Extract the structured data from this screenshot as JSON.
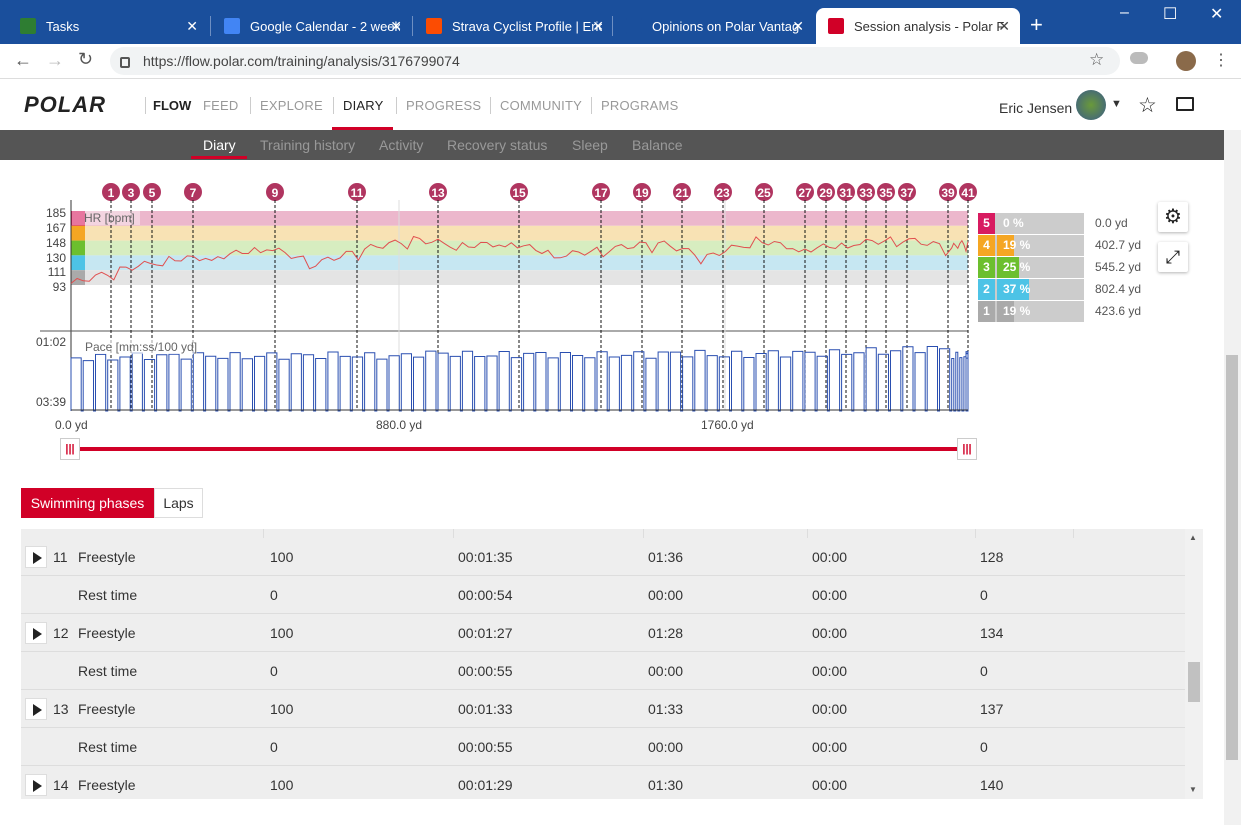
{
  "browser": {
    "tabs": [
      {
        "title": "Tasks",
        "fav": "#2e7d32"
      },
      {
        "title": "Google Calendar - 2 week",
        "fav": "#4285f4"
      },
      {
        "title": "Strava Cyclist Profile | Eric",
        "fav": "#fc4c02"
      },
      {
        "title": "Opinions on Polar Vantag",
        "fav": "#1a4f9c"
      },
      {
        "title": "Session analysis - Polar Flo",
        "fav": "#d10027"
      }
    ],
    "new_tab": "+",
    "url": "https://flow.polar.com/training/analysis/3176799074",
    "window_controls": [
      "–",
      "☐",
      "✕"
    ]
  },
  "nav": {
    "logo": "POLAR",
    "product": "FLOW",
    "items": [
      "FEED",
      "EXPLORE",
      "DIARY",
      "PROGRESS",
      "COMMUNITY",
      "PROGRAMS"
    ],
    "user": "Eric Jensen",
    "active": "DIARY"
  },
  "subnav": {
    "items": [
      "Diary",
      "Training history",
      "Activity",
      "Recovery status",
      "Sleep",
      "Balance"
    ],
    "active": "Diary"
  },
  "chart": {
    "markers": [
      "1",
      "3",
      "5",
      "7",
      "9",
      "11",
      "13",
      "15",
      "17",
      "19",
      "21",
      "23",
      "25",
      "27",
      "29",
      "31",
      "33",
      "35",
      "37",
      "39",
      "41"
    ],
    "hr_label": "HR [bpm]",
    "hr_ticks": [
      "185",
      "167",
      "148",
      "130",
      "111",
      "93"
    ],
    "pace_label": "Pace [mm:ss/100 yd]",
    "pace_ticks": [
      "01:02",
      "03:39"
    ],
    "x_ticks": [
      "0.0 yd",
      "880.0 yd",
      "1760.0 yd"
    ],
    "zones": [
      {
        "num": "5",
        "pct": "0 %",
        "dist": "0.0 yd",
        "color": "#d81b60",
        "frac": 0.0
      },
      {
        "num": "4",
        "pct": "19 %",
        "dist": "402.7 yd",
        "color": "#f5a623",
        "frac": 0.19
      },
      {
        "num": "3",
        "pct": "25 %",
        "dist": "545.2 yd",
        "color": "#6cbf2e",
        "frac": 0.25
      },
      {
        "num": "2",
        "pct": "37 %",
        "dist": "802.4 yd",
        "color": "#4dc3e6",
        "frac": 0.37
      },
      {
        "num": "1",
        "pct": "19 %",
        "dist": "423.6 yd",
        "color": "#aaaaaa",
        "frac": 0.19
      }
    ]
  },
  "chart_data": {
    "type": "line",
    "series": [
      {
        "name": "HR [bpm]",
        "unit": "bpm",
        "x": [
          0,
          120,
          240,
          360,
          480,
          600,
          720,
          840,
          960,
          1080,
          1200,
          1320,
          1440,
          1560,
          1680,
          1800,
          1920,
          2040,
          2160,
          2200
        ],
        "values": [
          95,
          112,
          125,
          128,
          140,
          120,
          138,
          150,
          142,
          145,
          130,
          138,
          146,
          128,
          149,
          137,
          145,
          150,
          140,
          147
        ]
      },
      {
        "name": "Pace [mm:ss/100 yd]",
        "unit": "mm:ss/100 yd",
        "x": [
          0,
          120,
          240,
          360,
          480,
          600,
          720,
          840,
          960,
          1080,
          1200,
          1320,
          1440,
          1560,
          1680,
          1800,
          1920,
          2040,
          2160,
          2200
        ],
        "values": [
          "01:40",
          "01:36",
          "01:35",
          "01:36",
          "01:35",
          "01:34",
          "01:36",
          "01:30",
          "01:33",
          "01:32",
          "01:34",
          "01:33",
          "01:30",
          "01:33",
          "01:30",
          "01:29",
          "01:25",
          "01:20",
          "01:35",
          "01:33"
        ]
      }
    ],
    "ylim_hr": [
      93,
      185
    ],
    "xlabel_ticks": [
      "0.0 yd",
      "880.0 yd",
      "1760.0 yd"
    ]
  },
  "tabs": {
    "phases": "Swimming phases",
    "laps": "Laps"
  },
  "rows": [
    {
      "num": "11",
      "type": "Freestyle",
      "dist": "100",
      "dur": "00:01:35",
      "pace": "01:36",
      "c5": "00:00",
      "hr": "128",
      "play": true
    },
    {
      "num": "",
      "type": "Rest time",
      "dist": "0",
      "dur": "00:00:54",
      "pace": "00:00",
      "c5": "00:00",
      "hr": "0",
      "play": false
    },
    {
      "num": "12",
      "type": "Freestyle",
      "dist": "100",
      "dur": "00:01:27",
      "pace": "01:28",
      "c5": "00:00",
      "hr": "134",
      "play": true
    },
    {
      "num": "",
      "type": "Rest time",
      "dist": "0",
      "dur": "00:00:55",
      "pace": "00:00",
      "c5": "00:00",
      "hr": "0",
      "play": false
    },
    {
      "num": "13",
      "type": "Freestyle",
      "dist": "100",
      "dur": "00:01:33",
      "pace": "01:33",
      "c5": "00:00",
      "hr": "137",
      "play": true
    },
    {
      "num": "",
      "type": "Rest time",
      "dist": "0",
      "dur": "00:00:55",
      "pace": "00:00",
      "c5": "00:00",
      "hr": "0",
      "play": false
    },
    {
      "num": "14",
      "type": "Freestyle",
      "dist": "100",
      "dur": "00:01:29",
      "pace": "01:30",
      "c5": "00:00",
      "hr": "140",
      "play": true
    }
  ],
  "colors": {
    "accent": "#d10027",
    "hr_line": "#e05050",
    "pace_line": "#2a4fb0",
    "marker": "#b03560"
  }
}
